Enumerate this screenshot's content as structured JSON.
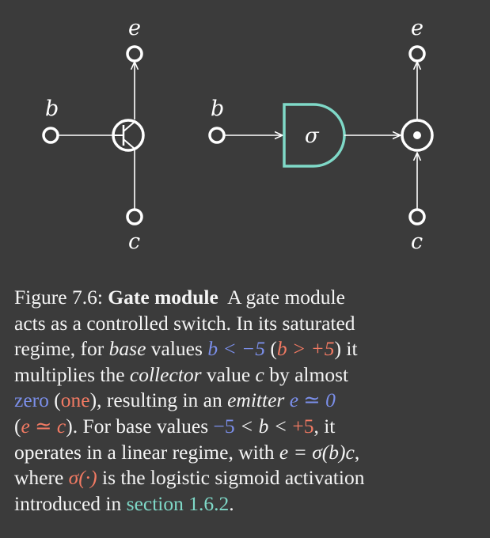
{
  "diagram_left": {
    "base_label": "b",
    "emitter_label": "e",
    "collector_label": "c"
  },
  "diagram_right": {
    "base_label": "b",
    "emitter_label": "e",
    "collector_label": "c",
    "gate_symbol": "σ"
  },
  "colors": {
    "background": "#3b3b3b",
    "foreground": "#ffffff",
    "gate": "#7fd9c8",
    "blue": "#7b8fea",
    "red": "#f27a63",
    "teal": "#7fd9c8"
  },
  "caption": {
    "fig_number": "Figure 7.6:",
    "title": "Gate module",
    "l1_rest": "A gate module",
    "l2": "acts as a controlled switch. In its saturated",
    "l3_a": "regime, for",
    "l3_base": "base",
    "l3_b": "values",
    "l3_cond1": "b < −5",
    "l3_open": "(",
    "l3_cond2": "b > +5",
    "l3_close": ") it",
    "l4_a": "multiplies the",
    "l4_collector": "collector",
    "l4_b": "value",
    "l4_c": "c",
    "l4_d": "by almost",
    "l5_zero": "zero",
    "l5_open": "(",
    "l5_one": "one",
    "l5_a": "), resulting in an",
    "l5_emitter": "emitter",
    "l5_eq": "e ≃ 0",
    "l6_open": "(",
    "l6_eq": "e ≃ c",
    "l6_a": "). For base values",
    "l6_neg": "−5",
    "l6_mid": "< b <",
    "l6_pos": "+5",
    "l6_b": ", it",
    "l7_a": "operates in a linear regime, with",
    "l7_eq": "e = σ(b)c",
    "l7_b": ",",
    "l8_a": "where",
    "l8_sigma": "σ(·)",
    "l8_b": "is the logistic sigmoid activation",
    "l9_a": "introduced in",
    "l9_link": "section 1.6.2",
    "l9_b": "."
  }
}
